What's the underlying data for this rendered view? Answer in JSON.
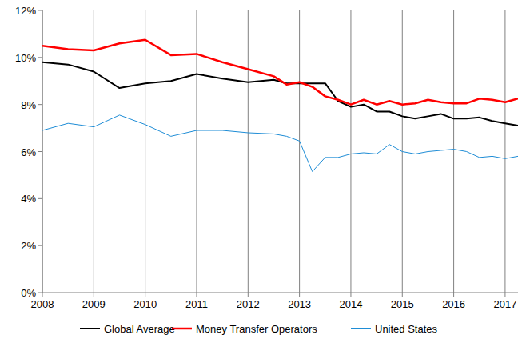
{
  "chart_data": {
    "type": "line",
    "x": [
      2008,
      2008.5,
      2009,
      2009.5,
      2010,
      2010.5,
      2011,
      2011.5,
      2012,
      2012.5,
      2012.75,
      2013,
      2013.25,
      2013.5,
      2013.75,
      2014,
      2014.25,
      2014.5,
      2014.75,
      2015,
      2015.25,
      2015.5,
      2015.75,
      2016,
      2016.25,
      2016.5,
      2016.75,
      2017,
      2017.25
    ],
    "series": [
      {
        "name": "Global Average",
        "color": "#000000",
        "values": [
          9.8,
          9.7,
          9.4,
          8.7,
          8.9,
          9.0,
          9.3,
          9.1,
          8.95,
          9.05,
          8.9,
          8.9,
          8.9,
          8.9,
          8.15,
          7.9,
          8.0,
          7.7,
          7.7,
          7.5,
          7.4,
          7.5,
          7.6,
          7.4,
          7.4,
          7.45,
          7.3,
          7.2,
          7.1
        ]
      },
      {
        "name": "Money Transfer Operators",
        "color": "#ff0000",
        "values": [
          10.5,
          10.35,
          10.3,
          10.6,
          10.75,
          10.1,
          10.15,
          9.8,
          9.5,
          9.2,
          8.85,
          8.95,
          8.75,
          8.35,
          8.2,
          8.0,
          8.2,
          8.0,
          8.15,
          8.0,
          8.05,
          8.2,
          8.1,
          8.05,
          8.05,
          8.25,
          8.2,
          8.1,
          8.25
        ]
      },
      {
        "name": "United States",
        "color": "#1f8dd6",
        "values": [
          6.9,
          7.2,
          7.05,
          7.55,
          7.15,
          6.65,
          6.9,
          6.9,
          6.8,
          6.75,
          6.65,
          6.45,
          5.15,
          5.75,
          5.75,
          5.9,
          5.95,
          5.9,
          6.3,
          6.0,
          5.9,
          6.0,
          6.05,
          6.1,
          6.0,
          5.75,
          5.8,
          5.7,
          5.8
        ]
      }
    ],
    "xlim": [
      2008,
      2017.25
    ],
    "xticks": [
      2008,
      2009,
      2010,
      2011,
      2012,
      2013,
      2014,
      2015,
      2016,
      2017
    ],
    "ylim": [
      0,
      12
    ],
    "yticks": [
      {
        "value": 0,
        "label": "0%"
      },
      {
        "value": 2,
        "label": "2%"
      },
      {
        "value": 4,
        "label": "4%"
      },
      {
        "value": 6,
        "label": "6%"
      },
      {
        "value": 8,
        "label": "8%"
      },
      {
        "value": 10,
        "label": "10%"
      },
      {
        "value": 12,
        "label": "12%"
      }
    ],
    "grid": true,
    "legend": "bottom"
  }
}
